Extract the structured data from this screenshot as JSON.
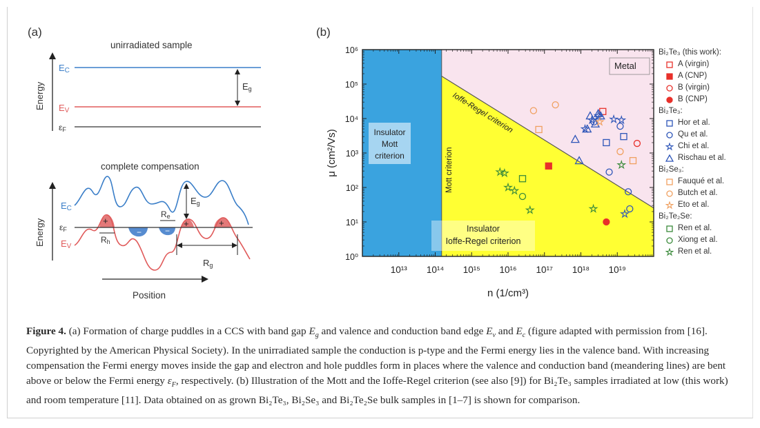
{
  "panel_a": {
    "label": "(a)",
    "top_title": "unirradiated sample",
    "bottom_title": "complete compensation",
    "energy_label": "Energy",
    "Ec": "E",
    "Ec_sub": "C",
    "Ev": "E",
    "Ev_sub": "V",
    "Ef": "ε",
    "Ef_sub": "F",
    "Eg": "E",
    "Eg_sub": "g",
    "Re": "R",
    "Re_sub": "e",
    "Rh": "R",
    "Rh_sub": "h",
    "Rg": "R",
    "Rg_sub": "g",
    "position_label": "Position",
    "plus": "+",
    "minus": "−"
  },
  "panel_b": {
    "label": "(b)",
    "metal_label": "Metal",
    "ir_line_label": "Ioffe-Regel criterion",
    "mott_line_label": "Mott criterion",
    "insulator_mott_label": [
      "Insulator",
      "Mott",
      "criterion"
    ],
    "insulator_ir_label": [
      "Insulator",
      "Ioffe-Regel criterion"
    ],
    "xlabel": "n (1/cm³)",
    "ylabel": "μ (cm²/Vs)",
    "x_tick_labels": [
      "10¹³",
      "10¹⁴",
      "10¹⁵",
      "10¹⁶",
      "10¹⁷",
      "10¹⁸",
      "10¹⁹"
    ],
    "y_tick_labels": [
      "10⁰",
      "10¹",
      "10²",
      "10³",
      "10⁴",
      "10⁵",
      "10⁶"
    ]
  },
  "colors": {
    "blue_region": "#3aa3df",
    "yellow_region": "#ffff33",
    "pink_region": "#f9e4ee",
    "ec_line": "#3a7ec8",
    "ev_line": "#e05a5a",
    "red_marker": "#e8302a",
    "blue_marker": "#2d55b8",
    "orange_marker": "#f0a060",
    "green_marker": "#3a8a3a"
  },
  "legend": {
    "groups": [
      {
        "title": "Bi₂Te₃ (this work):",
        "items": [
          {
            "label": "A (virgin)",
            "marker": "square-open",
            "color": "#e8302a"
          },
          {
            "label": "A (CNP)",
            "marker": "square-filled",
            "color": "#e8302a"
          },
          {
            "label": "B (virgin)",
            "marker": "circle-open",
            "color": "#e8302a"
          },
          {
            "label": "B (CNP)",
            "marker": "circle-filled",
            "color": "#e8302a"
          }
        ]
      },
      {
        "title": "Bi₂Te₃:",
        "items": [
          {
            "label": "Hor et al.",
            "marker": "square-open",
            "color": "#2d55b8"
          },
          {
            "label": "Qu et al.",
            "marker": "circle-open",
            "color": "#2d55b8"
          },
          {
            "label": "Chi et al.",
            "marker": "star-open",
            "color": "#2d55b8"
          },
          {
            "label": "Rischau et al.",
            "marker": "triangle-open",
            "color": "#2d55b8"
          }
        ]
      },
      {
        "title": "Bi₂Se₃:",
        "items": [
          {
            "label": "Fauqué et al.",
            "marker": "square-open",
            "color": "#f0a060"
          },
          {
            "label": "Butch et al.",
            "marker": "circle-open",
            "color": "#f0a060"
          },
          {
            "label": "Eto et al.",
            "marker": "star-open",
            "color": "#f0a060"
          }
        ]
      },
      {
        "title": "Bi₂Te₂Se:",
        "items": [
          {
            "label": "Ren et al.",
            "marker": "square-open",
            "color": "#3a8a3a"
          },
          {
            "label": "Xiong et al.",
            "marker": "circle-open",
            "color": "#3a8a3a"
          },
          {
            "label": "Ren et al.",
            "marker": "star-open",
            "color": "#3a8a3a"
          }
        ]
      }
    ]
  },
  "chart_data": {
    "type": "scatter",
    "x_scale": "log",
    "y_scale": "log",
    "xlim": [
      1000000000000.0,
      1e+20
    ],
    "ylim": [
      1,
      1000000
    ],
    "regions": {
      "mott_criterion_n": 150000000000000.0,
      "ioffe_regel_line": [
        [
          150000000000000.0,
          170000
        ],
        [
          5e+19,
          40
        ]
      ]
    },
    "series": [
      {
        "name": "A (virgin)",
        "marker": "square-open",
        "color": "#e8302a",
        "points": [
          [
            4e+18,
            16000
          ]
        ]
      },
      {
        "name": "A (CNP)",
        "marker": "square-filled",
        "color": "#e8302a",
        "points": [
          [
            1.3e+17,
            420
          ]
        ]
      },
      {
        "name": "B (virgin)",
        "marker": "circle-open",
        "color": "#e8302a",
        "points": [
          [
            3.5e+19,
            1900
          ]
        ]
      },
      {
        "name": "B (CNP)",
        "marker": "circle-filled",
        "color": "#e8302a",
        "points": [
          [
            5e+18,
            10
          ]
        ]
      },
      {
        "name": "Hor et al.",
        "marker": "square-open",
        "color": "#2d55b8",
        "points": [
          [
            5e+18,
            2000
          ],
          [
            1.5e+19,
            3000
          ]
        ]
      },
      {
        "name": "Qu et al.",
        "marker": "circle-open",
        "color": "#2d55b8",
        "points": [
          [
            2.3e+18,
            8000
          ],
          [
            6e+18,
            280
          ],
          [
            1.2e+19,
            6000
          ],
          [
            2e+19,
            75
          ],
          [
            2.2e+19,
            24
          ]
        ]
      },
      {
        "name": "Chi et al.",
        "marker": "star-open",
        "color": "#2d55b8",
        "points": [
          [
            1.3e+18,
            5000
          ],
          [
            2e+18,
            9000
          ],
          [
            3e+18,
            12000
          ],
          [
            8e+18,
            9500
          ],
          [
            1.3e+19,
            9000
          ],
          [
            1.6e+19,
            17
          ]
        ]
      },
      {
        "name": "Rischau et al.",
        "marker": "triangle-open",
        "color": "#2d55b8",
        "points": [
          [
            7e+17,
            2500
          ],
          [
            9e+17,
            600
          ],
          [
            1.5e+18,
            5000
          ],
          [
            1.8e+18,
            12000
          ],
          [
            2.5e+18,
            7000
          ],
          [
            3e+18,
            14000
          ],
          [
            3.5e+18,
            12000
          ]
        ]
      },
      {
        "name": "Fauqué et al.",
        "marker": "square-open",
        "color": "#f0a060",
        "points": [
          [
            7e+16,
            4800
          ],
          [
            2.7e+19,
            600
          ]
        ]
      },
      {
        "name": "Butch et al.",
        "marker": "circle-open",
        "color": "#f0a060",
        "points": [
          [
            5e+16,
            17000
          ],
          [
            2e+17,
            25000
          ],
          [
            1.2e+19,
            1100
          ]
        ]
      },
      {
        "name": "Eto et al.",
        "marker": "star-open",
        "color": "#f0a060",
        "points": [
          [
            3.3e+18,
            8000
          ]
        ]
      },
      {
        "name": "Ren et al.",
        "marker": "square-open",
        "color": "#3a8a3a",
        "points": [
          [
            2.5e+16,
            180
          ]
        ]
      },
      {
        "name": "Xiong et al.",
        "marker": "circle-open",
        "color": "#3a8a3a",
        "points": [
          [
            2.5e+16,
            55
          ]
        ]
      },
      {
        "name": "Ren et al. (Bi₂Te₂Se)",
        "marker": "star-open",
        "color": "#3a8a3a",
        "points": [
          [
            6000000000000000.0,
            280
          ],
          [
            8000000000000000.0,
            260
          ],
          [
            1e+16,
            100
          ],
          [
            1.5e+16,
            80
          ],
          [
            4e+16,
            22
          ],
          [
            2.2e+18,
            24
          ],
          [
            1.3e+19,
            450
          ]
        ]
      }
    ]
  },
  "caption": {
    "fig": "Figure 4.",
    "text_1": " (a) Formation of charge puddles in a CCS with band gap ",
    "text_2": " and valence and conduction band edge ",
    "text_3": " and ",
    "text_4": " (figure adapted with permission from [16]. Copyrighted by the American Physical Society). In the unirradiated sample the conduction is p-type and the Fermi energy lies in the valence band. With increasing compensation the Fermi energy moves inside the gap and electron and hole puddles form in places where the valence and conduction band (meandering lines) are bent above or below the Fermi energy ",
    "text_5": ", respectively. (b) Illustration of the Mott and the Ioffe-Regel criterion (see also [9]) for ",
    "text_6": " samples irradiated at low (this work) and room temperature [11]. Data obtained on as grown ",
    "text_7": ", ",
    "text_8": " and ",
    "text_9": " bulk samples in [1–7] is shown for comparison.",
    "Eg": "E",
    "Eg_sub": "g",
    "Ev": "E",
    "Ev_sub": "v",
    "Ec": "E",
    "Ec_sub": "c",
    "epsF": "ε",
    "epsF_sub": "F",
    "Bi2Te3": "Bi₂Te₃",
    "Bi2Se3": "Bi₂Se₃",
    "Bi2Te2Se": "Bi₂Te₂Se"
  }
}
